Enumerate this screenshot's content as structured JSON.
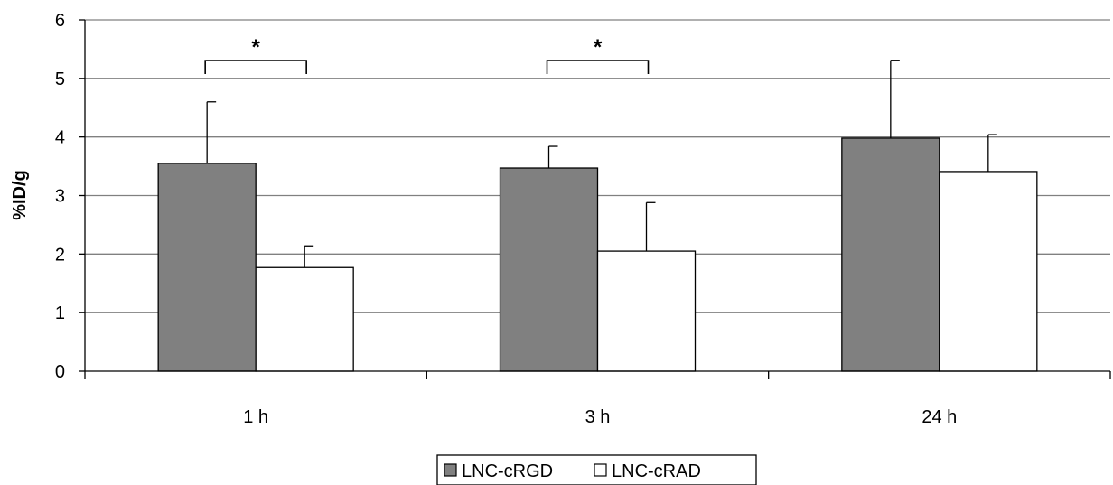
{
  "chart_data": {
    "type": "bar",
    "title": "",
    "xlabel": "",
    "ylabel": "%ID/g",
    "ylim": [
      0,
      6
    ],
    "yticks": [
      "0",
      "1",
      "2",
      "3",
      "4",
      "5",
      "6"
    ],
    "categories": [
      "1 h",
      "3 h",
      "24 h"
    ],
    "grid": "horizontal",
    "legend_position": "bottom",
    "series": [
      {
        "name": "LNC-cRGD",
        "color": "#808080",
        "values": [
          3.55,
          3.47,
          3.98
        ],
        "error": [
          1.05,
          0.37,
          1.33
        ]
      },
      {
        "name": "LNC-cRAD",
        "color": "#ffffff",
        "values": [
          1.77,
          2.05,
          3.41
        ],
        "error": [
          0.37,
          0.83,
          0.63
        ]
      }
    ],
    "annotations": [
      {
        "category": "1 h",
        "label": "*"
      },
      {
        "category": "3 h",
        "label": "*"
      }
    ]
  }
}
